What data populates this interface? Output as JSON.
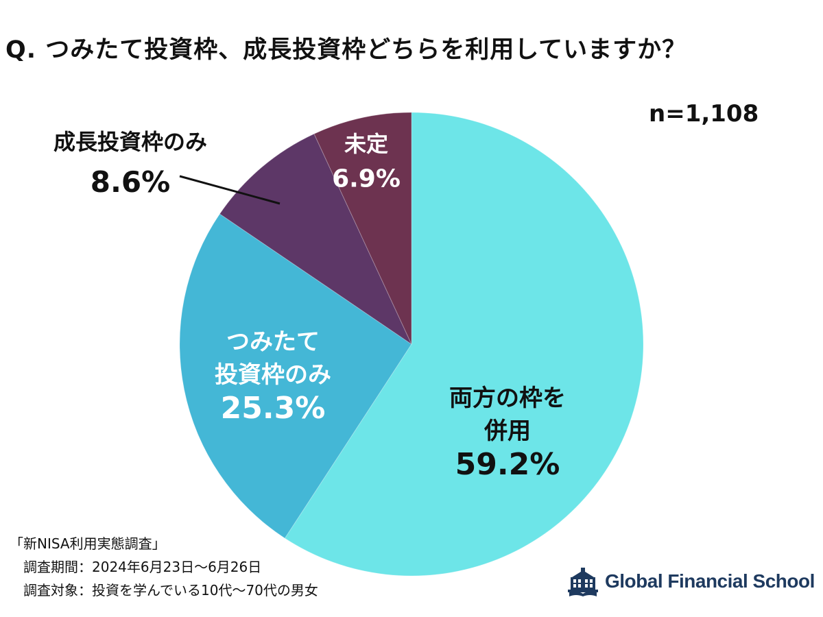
{
  "title": "Q. つみたて投資枠、成長投資枠どちらを利用していますか？",
  "sample_size": "n=1,108",
  "chart_data": {
    "type": "pie",
    "title": "Q. つみたて投資枠、成長投資枠どちらを利用していますか？",
    "slices": [
      {
        "label_lines": [
          "両方の枠を",
          "併用"
        ],
        "value": 59.2,
        "value_label": "59.2%",
        "color": "#6de5e8"
      },
      {
        "label_lines": [
          "つみたて",
          "投資枠のみ"
        ],
        "value": 25.3,
        "value_label": "25.3%",
        "color": "#44b7d6"
      },
      {
        "label_lines": [
          "成長投資枠のみ"
        ],
        "value": 8.6,
        "value_label": "8.6%",
        "color": "#5d3767"
      },
      {
        "label_lines": [
          "未定"
        ],
        "value": 6.9,
        "value_label": "6.9%",
        "color": "#6d3350"
      }
    ]
  },
  "footnote": {
    "line1": "「新NISA利用実態調査」",
    "line2": "　調査期間：2024年6月23日〜6月26日",
    "line3": "　調査対象：投資を学んでいる10代〜70代の男女"
  },
  "logo": {
    "text": "Global Financial School",
    "icon": "school-building-icon",
    "color": "#1e3a5f"
  }
}
